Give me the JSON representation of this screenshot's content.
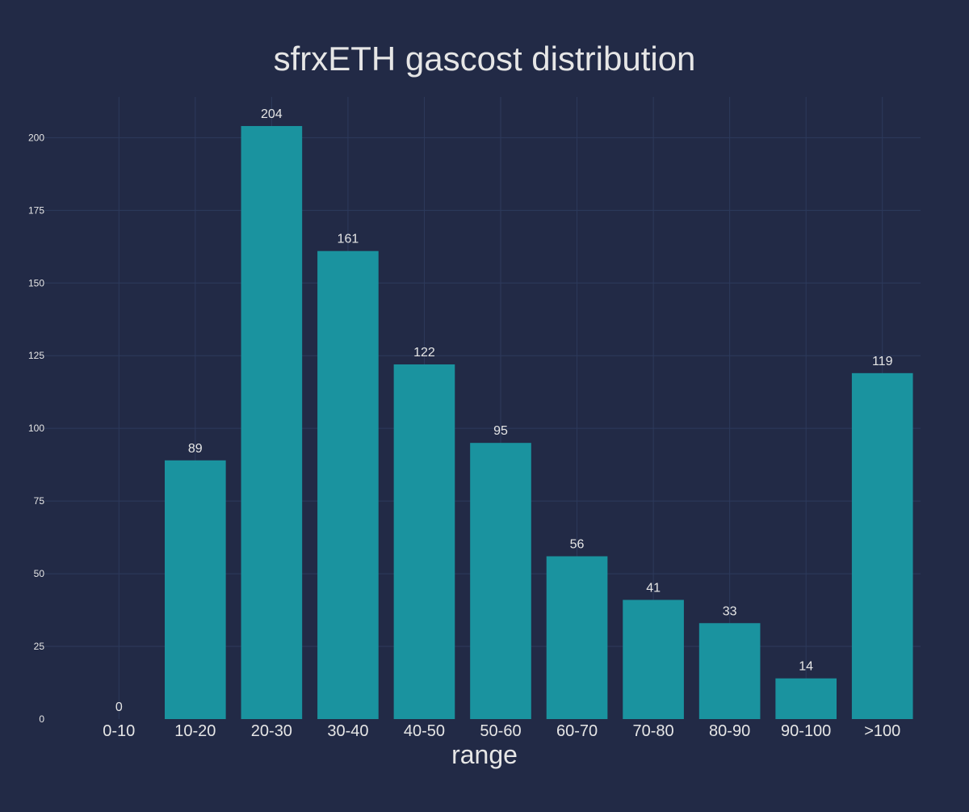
{
  "chart_data": {
    "type": "bar",
    "title": "sfrxETH gascost distribution",
    "xlabel": "range",
    "ylabel": "",
    "categories": [
      "0-10",
      "10-20",
      "20-30",
      "30-40",
      "40-50",
      "50-60",
      "60-70",
      "70-80",
      "80-90",
      "90-100",
      ">100"
    ],
    "values": [
      0,
      89,
      204,
      161,
      122,
      95,
      56,
      41,
      33,
      14,
      119
    ],
    "ylim": [
      0,
      214
    ],
    "yticks": [
      0,
      25,
      50,
      75,
      100,
      125,
      150,
      175,
      200
    ],
    "grid": true,
    "legend": "none",
    "colors": {
      "background": "#222a46",
      "bar": "#1a939f",
      "grid": "#2d3a5c",
      "text": "#e6e6e6"
    }
  }
}
